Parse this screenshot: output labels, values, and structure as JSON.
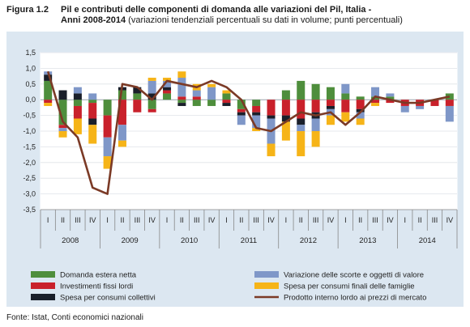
{
  "figure": {
    "label": "Figura 1.2",
    "title_bold_1": "Pil e contributi delle componenti di domanda alle variazioni del Pil, Italia -",
    "title_bold_2": "Anni 2008-2014",
    "title_rest": " (variazioni tendenziali percentuali su dati in volume; punti percentuali)"
  },
  "source": "Fonte: Istat, Conti economici nazionali",
  "colors": {
    "export": "#4e8e3c",
    "invest": "#c9212b",
    "public": "#1a1f2a",
    "stock": "#7f97c8",
    "consumption": "#f6b418",
    "gdp": "#7b3a26"
  },
  "chart_data": {
    "type": "bar",
    "subtype": "stacked bar + line",
    "ylim": [
      -3.5,
      1.5
    ],
    "yticks": [
      "1,5",
      "1,0",
      "0,5",
      "0,0",
      "-0,5",
      "-1,0",
      "-1,5",
      "-2,0",
      "-2,5",
      "-3,0",
      "-3,5"
    ],
    "quarters": [
      "I",
      "II",
      "III",
      "IV",
      "I",
      "II",
      "III",
      "IV",
      "I",
      "II",
      "III",
      "IV",
      "I",
      "II",
      "III",
      "IV",
      "I",
      "II",
      "III",
      "IV",
      "I",
      "II",
      "III",
      "IV",
      "I",
      "II",
      "III",
      "IV"
    ],
    "years": [
      "2008",
      "2009",
      "2010",
      "2011",
      "2012",
      "2013",
      "2014"
    ],
    "grid": true,
    "series": [
      {
        "name": "Domanda estera netta",
        "key": "export",
        "values": [
          0.6,
          -0.8,
          -0.2,
          -0.1,
          -0.5,
          0.3,
          0.2,
          -0.3,
          0.2,
          -0.1,
          -0.2,
          -0.2,
          0.2,
          -0.3,
          -0.2,
          0.0,
          0.3,
          0.6,
          0.5,
          0.4,
          0.2,
          0.1,
          0.1,
          0.1,
          0.0,
          0.0,
          0.0,
          0.2
        ]
      },
      {
        "name": "Investimenti fissi lordi",
        "key": "invest",
        "values": [
          -0.1,
          -0.1,
          -0.4,
          -0.5,
          -0.7,
          -0.8,
          -0.4,
          -0.1,
          0.1,
          0.1,
          0.1,
          0.0,
          -0.1,
          -0.1,
          -0.2,
          -0.5,
          -0.5,
          -0.6,
          -0.4,
          -0.2,
          -0.4,
          -0.3,
          -0.1,
          -0.1,
          -0.2,
          -0.2,
          -0.2,
          -0.2
        ]
      },
      {
        "name": "Spesa per consumi collettivi",
        "key": "public",
        "values": [
          0.2,
          0.3,
          0.2,
          -0.2,
          0.0,
          0.1,
          0.2,
          0.2,
          0.1,
          -0.1,
          0.0,
          0.0,
          -0.1,
          -0.1,
          -0.1,
          -0.1,
          -0.2,
          -0.2,
          -0.2,
          -0.1,
          0.0,
          -0.1,
          0.0,
          0.0,
          0.0,
          0.0,
          0.0,
          0.0
        ]
      },
      {
        "name": "Variazione delle scorte e oggetti di valore",
        "key": "stock",
        "values": [
          0.1,
          -0.1,
          0.2,
          0.2,
          -0.6,
          -0.5,
          0.0,
          0.4,
          0.2,
          0.6,
          0.2,
          0.4,
          0.0,
          -0.3,
          -0.4,
          -0.8,
          0.0,
          -0.2,
          -0.4,
          -0.2,
          0.3,
          -0.2,
          0.3,
          0.1,
          -0.2,
          -0.1,
          0.0,
          -0.5
        ]
      },
      {
        "name": "Spesa per consumi finali delle famiglie",
        "key": "consumption",
        "values": [
          -0.1,
          -0.2,
          -0.5,
          -0.6,
          -0.4,
          -0.2,
          0.0,
          0.1,
          0.1,
          0.2,
          0.2,
          0.1,
          0.1,
          0.0,
          -0.1,
          -0.4,
          -0.6,
          -0.8,
          -0.5,
          -0.3,
          -0.3,
          -0.2,
          -0.1,
          0.0,
          0.0,
          0.0,
          0.0,
          0.0
        ]
      }
    ],
    "line": {
      "name": "Prodotto interno lordo ai prezzi di mercato",
      "key": "gdp",
      "values": [
        0.9,
        -0.7,
        -1.2,
        -2.8,
        -3.0,
        0.5,
        0.4,
        0.0,
        0.6,
        0.5,
        0.4,
        0.6,
        0.4,
        0.0,
        -0.9,
        -1.0,
        -0.7,
        -0.4,
        -0.5,
        -0.4,
        -0.8,
        -0.4,
        0.1,
        0.0,
        -0.1,
        -0.1,
        0.0,
        0.1
      ]
    }
  }
}
